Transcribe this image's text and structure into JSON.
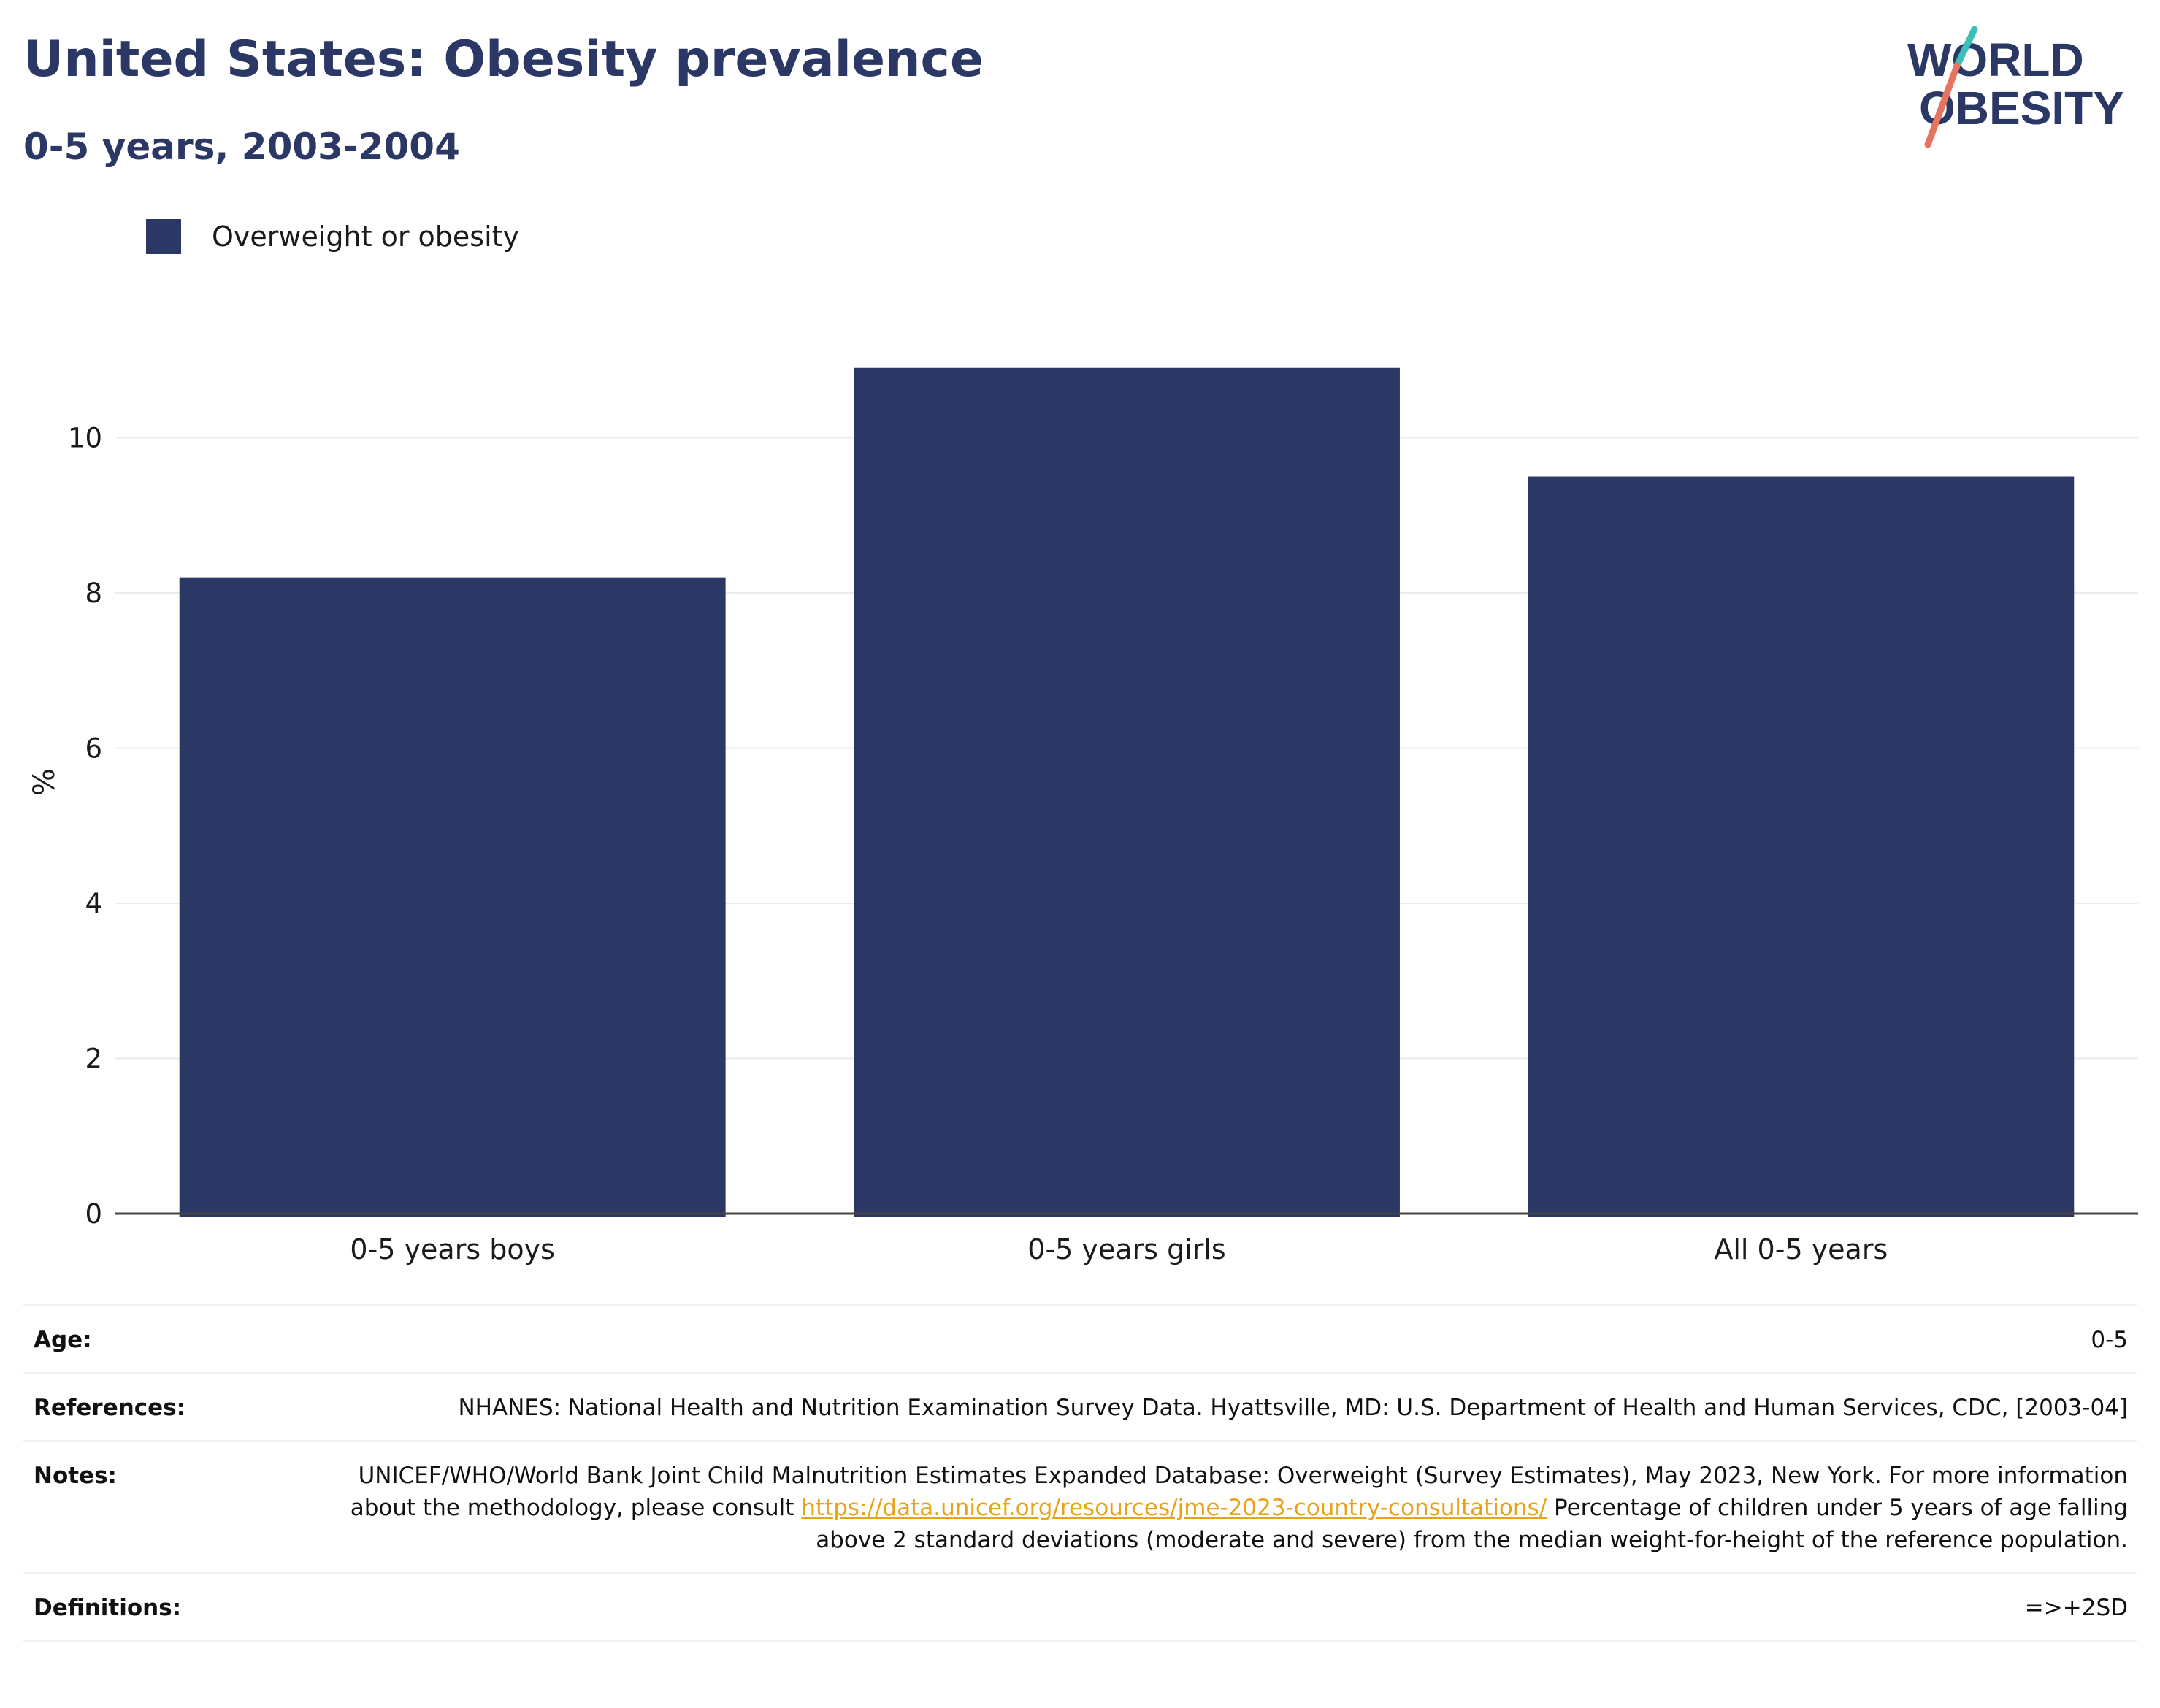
{
  "header": {
    "title": "United States: Obesity prevalence",
    "subtitle": "0-5 years, 2003-2004"
  },
  "logo": {
    "line1": "WORLD",
    "line2": "OBESITY",
    "colors": {
      "text": "#2b3764",
      "slash_top": "#3bbfb8",
      "slash_bottom": "#e8735e"
    }
  },
  "colors": {
    "bar": "#2b3764",
    "gridline": "#e9ebf1",
    "axis": "#444444",
    "link": "#e8a21a"
  },
  "chart_data": {
    "type": "bar",
    "title": "",
    "xlabel": "",
    "ylabel": "%",
    "categories": [
      "0-5 years boys",
      "0-5 years girls",
      "All 0-5 years"
    ],
    "series": [
      {
        "name": "Overweight or obesity",
        "values": [
          8.2,
          10.9,
          9.5
        ]
      }
    ],
    "ylim": [
      0,
      11.5
    ],
    "yticks": [
      0,
      2,
      4,
      6,
      8,
      10
    ],
    "grid": true,
    "legend": "top-left"
  },
  "meta": {
    "age": {
      "label": "Age:",
      "value": "0-5"
    },
    "references": {
      "label": "References:",
      "value": "NHANES: National Health and Nutrition Examination Survey Data. Hyattsville, MD: U.S. Department of Health and Human Services, CDC, [2003-04]"
    },
    "notes": {
      "label": "Notes:",
      "text_before": "UNICEF/WHO/World Bank Joint Child Malnutrition Estimates Expanded Database: Overweight (Survey Estimates), May 2023, New York. For more information about the methodology, please consult ",
      "link": "https://data.unicef.org/resources/jme-2023-country-consultations/",
      "text_after": " Percentage of children under 5 years of age falling above 2 standard deviations (moderate and severe) from the median weight-for-height of the reference population."
    },
    "definitions": {
      "label": "Definitions:",
      "value": "=>+2SD"
    }
  }
}
